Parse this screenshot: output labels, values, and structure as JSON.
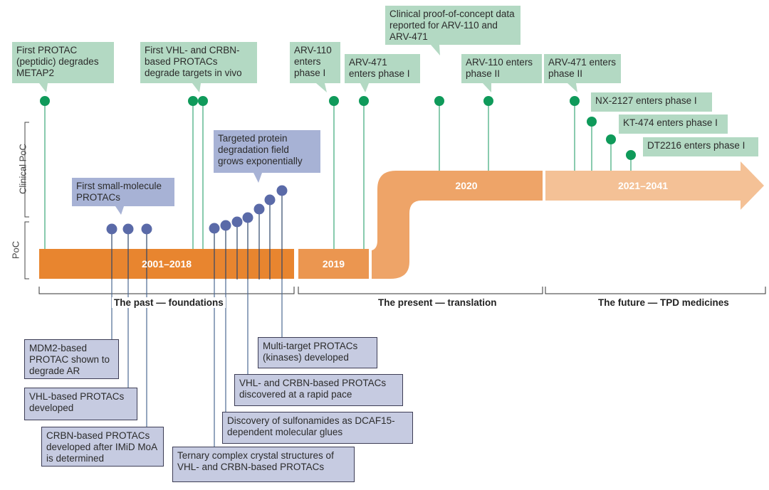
{
  "colors": {
    "milestone_green": "#0f9a5a",
    "callout_green": "#b3d9c3",
    "research_blue": "#5a6aa8",
    "callout_blue": "#a7b2d5",
    "band_past": "#e8852f",
    "band_2019": "#eb9650",
    "band_2020": "#eea468",
    "band_future": "#f4c196"
  },
  "axis": {
    "clinical_poc": "Clinical PoC",
    "poc": "PoC"
  },
  "bands": {
    "past": "2001–2018",
    "y2019": "2019",
    "y2020": "2020",
    "future": "2021–2041"
  },
  "eras": {
    "past": "The past — foundations",
    "present": "The present — translation",
    "future": "The future — TPD medicines"
  },
  "clinical": [
    "First PROTAC (peptidic) degrades METAP2",
    "First VHL- and CRBN-based PROTACs degrade targets in vivo",
    "ARV-110 enters phase I",
    "ARV-471 enters phase I",
    "Clinical proof-of-concept data reported for ARV-110 and ARV-471",
    "ARV-110 enters phase II",
    "ARV-471 enters phase II",
    "NX-2127 enters phase I",
    "KT-474 enters phase I",
    "DT2216 enters phase I"
  ],
  "research_above": [
    "First small-molecule PROTACs",
    "Targeted protein degradation field grows exponentially"
  ],
  "research_below": [
    "MDM2-based PROTAC shown to degrade AR",
    "VHL-based PROTACs developed",
    "CRBN-based PROTACs developed after IMiD MoA is determined",
    "Ternary complex crystal structures of VHL- and CRBN-based PROTACs",
    "Discovery of sulfonamides as DCAF15-dependent molecular glues",
    "VHL- and CRBN-based PROTACs discovered at a rapid pace",
    "Multi-target PROTACs (kinases) developed"
  ]
}
